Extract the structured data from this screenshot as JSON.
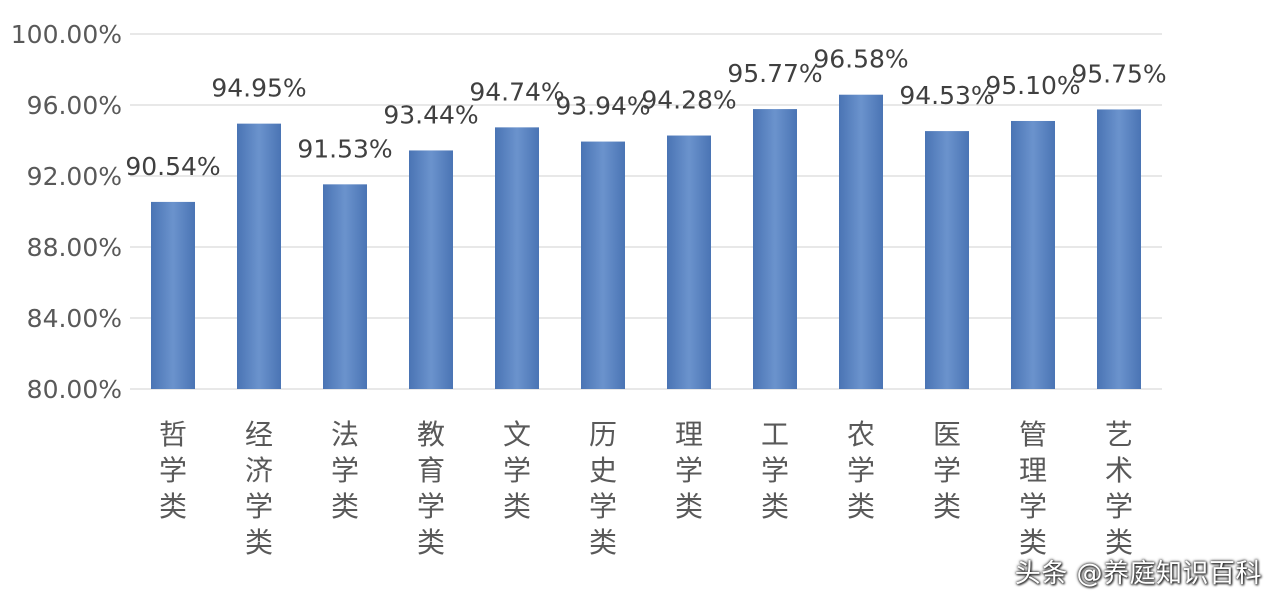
{
  "chart_data": {
    "type": "bar",
    "categories": [
      "哲学类",
      "经济学类",
      "法学类",
      "教育学类",
      "文学类",
      "历史学类",
      "理学类",
      "工学类",
      "农学类",
      "医学类",
      "管理学类",
      "艺术学类"
    ],
    "values": [
      90.54,
      94.95,
      91.53,
      93.44,
      94.74,
      93.94,
      94.28,
      95.77,
      96.58,
      94.53,
      95.1,
      95.75
    ],
    "data_labels": [
      "90.54%",
      "94.95%",
      "91.53%",
      "93.44%",
      "94.74%",
      "93.94%",
      "94.28%",
      "95.77%",
      "96.58%",
      "94.53%",
      "95.10%",
      "95.75%"
    ],
    "y_ticks": [
      80,
      84,
      88,
      92,
      96,
      100
    ],
    "y_tick_labels": [
      "80.00%",
      "84.00%",
      "88.00%",
      "92.00%",
      "96.00%",
      "100.00%"
    ],
    "ylim": [
      80,
      100
    ],
    "grid": true,
    "legend": false,
    "bar_color": "#5b84c0"
  },
  "watermark": "头条 @养庭知识百科"
}
